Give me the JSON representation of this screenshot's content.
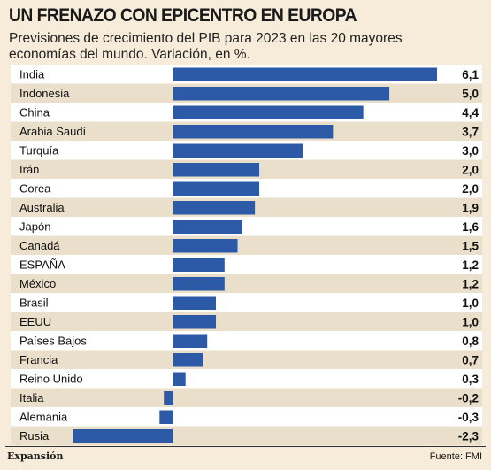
{
  "header": {
    "title": "UN FRENAZO CON EPICENTRO EN EUROPA",
    "subtitle": "Previsiones de crecimiento del PIB para 2023 en las 20 mayores economías del mundo. Variación, en %."
  },
  "footer": {
    "publisher": "Expansión",
    "source": "Fuente: FMI"
  },
  "colors": {
    "bar": "#2d5aa6",
    "row_bg_light": "#ffffff",
    "row_bg_dark": "#eadfca",
    "background": "#f6ecd9"
  },
  "chart_data": {
    "type": "bar",
    "orientation": "horizontal",
    "categories": [
      "India",
      "Indonesia",
      "China",
      "Arabia Saudí",
      "Turquía",
      "Irán",
      "Corea",
      "Australia",
      "Japón",
      "Canadá",
      "ESPAÑA",
      "México",
      "Brasil",
      "EEUU",
      "Países Bajos",
      "Francia",
      "Reino Unido",
      "Italia",
      "Alemania",
      "Rusia"
    ],
    "values": [
      6.1,
      5.0,
      4.4,
      3.7,
      3.0,
      2.0,
      2.0,
      1.9,
      1.6,
      1.5,
      1.2,
      1.2,
      1.0,
      1.0,
      0.8,
      0.7,
      0.3,
      -0.2,
      -0.3,
      -2.3
    ],
    "value_labels": [
      "6,1",
      "5,0",
      "4,4",
      "3,7",
      "3,0",
      "2,0",
      "2,0",
      "1,9",
      "1,6",
      "1,5",
      "1,2",
      "1,2",
      "1,0",
      "1,0",
      "0,8",
      "0,7",
      "0,3",
      "-0,2",
      "-0,3",
      "-2,3"
    ],
    "xlim": [
      -2.3,
      6.1
    ],
    "grid": false,
    "legend": "none"
  }
}
